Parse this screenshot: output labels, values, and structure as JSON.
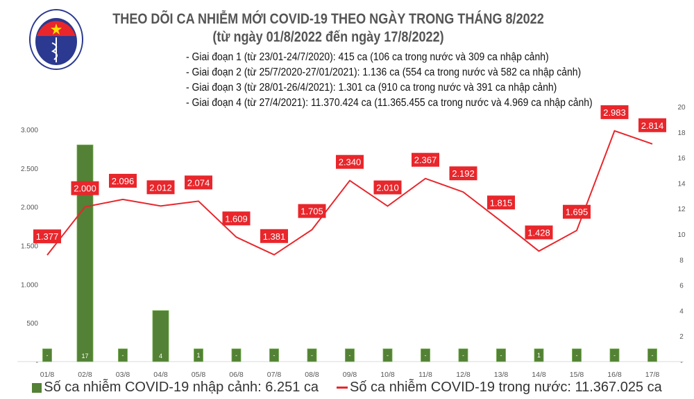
{
  "header": {
    "logo_text": "BỘ Y TẾ · MINISTRY OF HEALTH",
    "title": "THEO DÕI CA NHIỄM MỚI COVID-19 THEO NGÀY TRONG THÁNG 8/2022",
    "subtitle": "(từ ngày 01/8/2022 đến ngày 17/8/2022)",
    "notes": [
      "- Giai đoạn 1 (từ 23/01-24/7/2020): 415 ca (106 ca trong nước và 309 ca nhập cảnh)",
      "- Giai đoạn 2 (từ 25/7/2020-27/01/2021): 1.136 ca (554 ca trong nước và 582 ca nhập cảnh)",
      "- Giai đoạn 3 (từ 28/01-26/4/2021): 1.301 ca (910 ca trong nước và 391 ca nhập cảnh)",
      "- Giai đoạn 4 (từ 27/4/2021): 11.370.424 ca (11.365.455 ca trong nước và 4.969 ca nhập cảnh)"
    ]
  },
  "chart_data": {
    "type": "bar+line",
    "categories": [
      "01/8",
      "02/8",
      "03/8",
      "04/8",
      "05/8",
      "06/8",
      "07/8",
      "08/8",
      "09/8",
      "10/8",
      "11/8",
      "12/8",
      "13/8",
      "14/8",
      "15/8",
      "16/8",
      "17/8"
    ],
    "series": [
      {
        "name": "Số ca nhiễm COVID-19 nhập cảnh: 6.251 ca",
        "type": "bar",
        "axis": "right",
        "color": "#538135",
        "values": [
          0,
          17,
          0,
          4,
          1,
          0,
          0,
          0,
          0,
          0,
          0,
          0,
          0,
          1,
          0,
          0,
          0
        ],
        "labels": [
          "-",
          "17",
          "-",
          "4",
          "1",
          "-",
          "-",
          "-",
          "-",
          "-",
          "-",
          "-",
          "-",
          "1",
          "-",
          "-",
          "-"
        ]
      },
      {
        "name": "Số ca nhiễm COVID-19 trong nước: 11.367.025 ca",
        "type": "line",
        "axis": "left",
        "color": "#e8262b",
        "values": [
          1377,
          2000,
          2096,
          2012,
          2074,
          1609,
          1381,
          1705,
          2340,
          2010,
          2367,
          2192,
          1815,
          1428,
          1695,
          2983,
          2814
        ],
        "labels": [
          "1.377",
          "2.000",
          "2.096",
          "2.012",
          "2.074",
          "1.609",
          "1.381",
          "1.705",
          "2.340",
          "2.010",
          "2.367",
          "2.192",
          "1.815",
          "1.428",
          "1.695",
          "2.983",
          "2.814"
        ]
      }
    ],
    "y_left": {
      "range": [
        0,
        3000
      ],
      "ticks": [
        0,
        500,
        1000,
        1500,
        2000,
        2500,
        3000
      ],
      "tick_labels": [
        "-",
        "500",
        "1.000",
        "1.500",
        "2.000",
        "2.500",
        "3.000"
      ]
    },
    "y_right": {
      "range": [
        0,
        20
      ],
      "ticks": [
        0,
        2,
        4,
        6,
        8,
        10,
        12,
        14,
        16,
        18,
        20
      ],
      "tick_labels": [
        "-",
        "2",
        "4",
        "6",
        "8",
        "10",
        "12",
        "14",
        "16",
        "18",
        "20"
      ]
    },
    "grid": false,
    "legend_position": "bottom"
  }
}
